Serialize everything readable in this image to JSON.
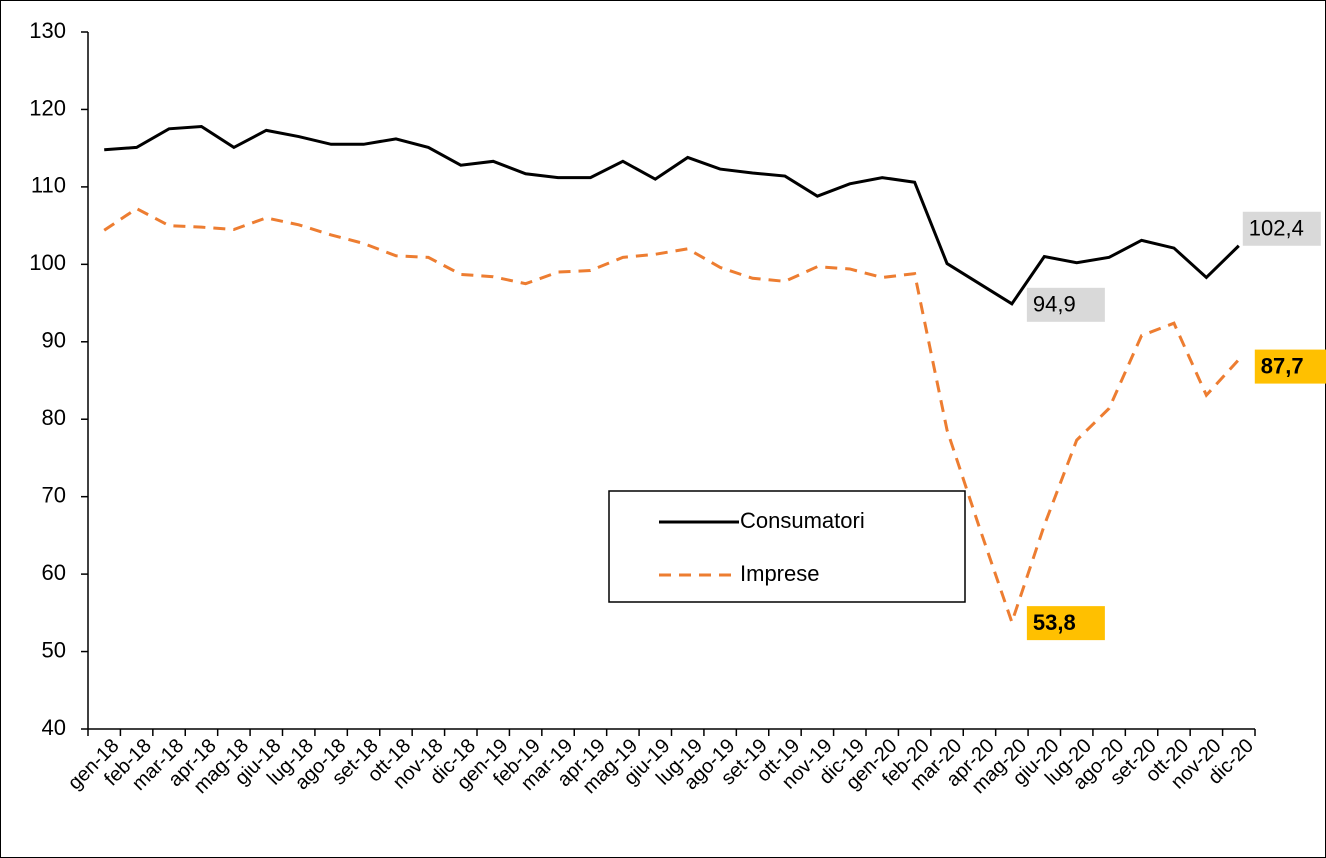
{
  "chart_data": {
    "type": "line",
    "categories": [
      "gen-18",
      "feb-18",
      "mar-18",
      "apr-18",
      "mag-18",
      "giu-18",
      "lug-18",
      "ago-18",
      "set-18",
      "ott-18",
      "nov-18",
      "dic-18",
      "gen-19",
      "feb-19",
      "mar-19",
      "apr-19",
      "mag-19",
      "giu-19",
      "lug-19",
      "ago-19",
      "set-19",
      "ott-19",
      "nov-19",
      "dic-19",
      "gen-20",
      "feb-20",
      "mar-20",
      "apr-20",
      "mag-20",
      "giu-20",
      "lug-20",
      "ago-20",
      "set-20",
      "ott-20",
      "nov-20",
      "dic-20"
    ],
    "series": [
      {
        "name": "Consumatori",
        "color": "#000000",
        "dash": false,
        "values": [
          114.8,
          115.1,
          117.5,
          117.8,
          115.1,
          117.3,
          116.5,
          115.5,
          115.5,
          116.2,
          115.1,
          112.8,
          113.3,
          111.7,
          111.2,
          111.2,
          113.3,
          111.0,
          113.8,
          112.3,
          111.8,
          111.4,
          108.8,
          110.4,
          111.2,
          110.6,
          100.1,
          97.5,
          94.9,
          101.0,
          100.2,
          100.9,
          103.1,
          102.1,
          98.3,
          102.4
        ],
        "value_labels": [
          null,
          null,
          null,
          null,
          null,
          null,
          null,
          null,
          null,
          null,
          null,
          null,
          null,
          null,
          null,
          null,
          null,
          null,
          null,
          null,
          null,
          null,
          null,
          null,
          null,
          null,
          null,
          null,
          "94,9",
          null,
          null,
          null,
          null,
          null,
          null,
          "102,4"
        ],
        "label_color": "#d9d9d9",
        "label_bold": false
      },
      {
        "name": "Imprese",
        "color": "#ED7D31",
        "dash": true,
        "values": [
          104.4,
          107.2,
          105.0,
          104.8,
          104.5,
          106.0,
          105.1,
          103.8,
          102.7,
          101.1,
          100.9,
          98.7,
          98.4,
          97.5,
          99.0,
          99.2,
          100.9,
          101.3,
          102.0,
          99.6,
          98.2,
          97.8,
          99.7,
          99.4,
          98.3,
          98.8,
          78.6,
          66.0,
          53.8,
          66.3,
          77.3,
          81.4,
          90.8,
          92.4,
          83.1,
          87.7
        ],
        "value_labels": [
          null,
          null,
          null,
          null,
          null,
          null,
          null,
          null,
          null,
          null,
          null,
          null,
          null,
          null,
          null,
          null,
          null,
          null,
          null,
          null,
          null,
          null,
          null,
          null,
          null,
          null,
          null,
          null,
          "53,8",
          null,
          null,
          null,
          null,
          null,
          null,
          "87,7"
        ],
        "label_color": "#FFC000",
        "label_bold": true
      }
    ],
    "ylim": [
      40,
      130
    ],
    "yticks": [
      40,
      50,
      60,
      70,
      80,
      90,
      100,
      110,
      120,
      130
    ],
    "grid": false,
    "legend": "center-right"
  }
}
